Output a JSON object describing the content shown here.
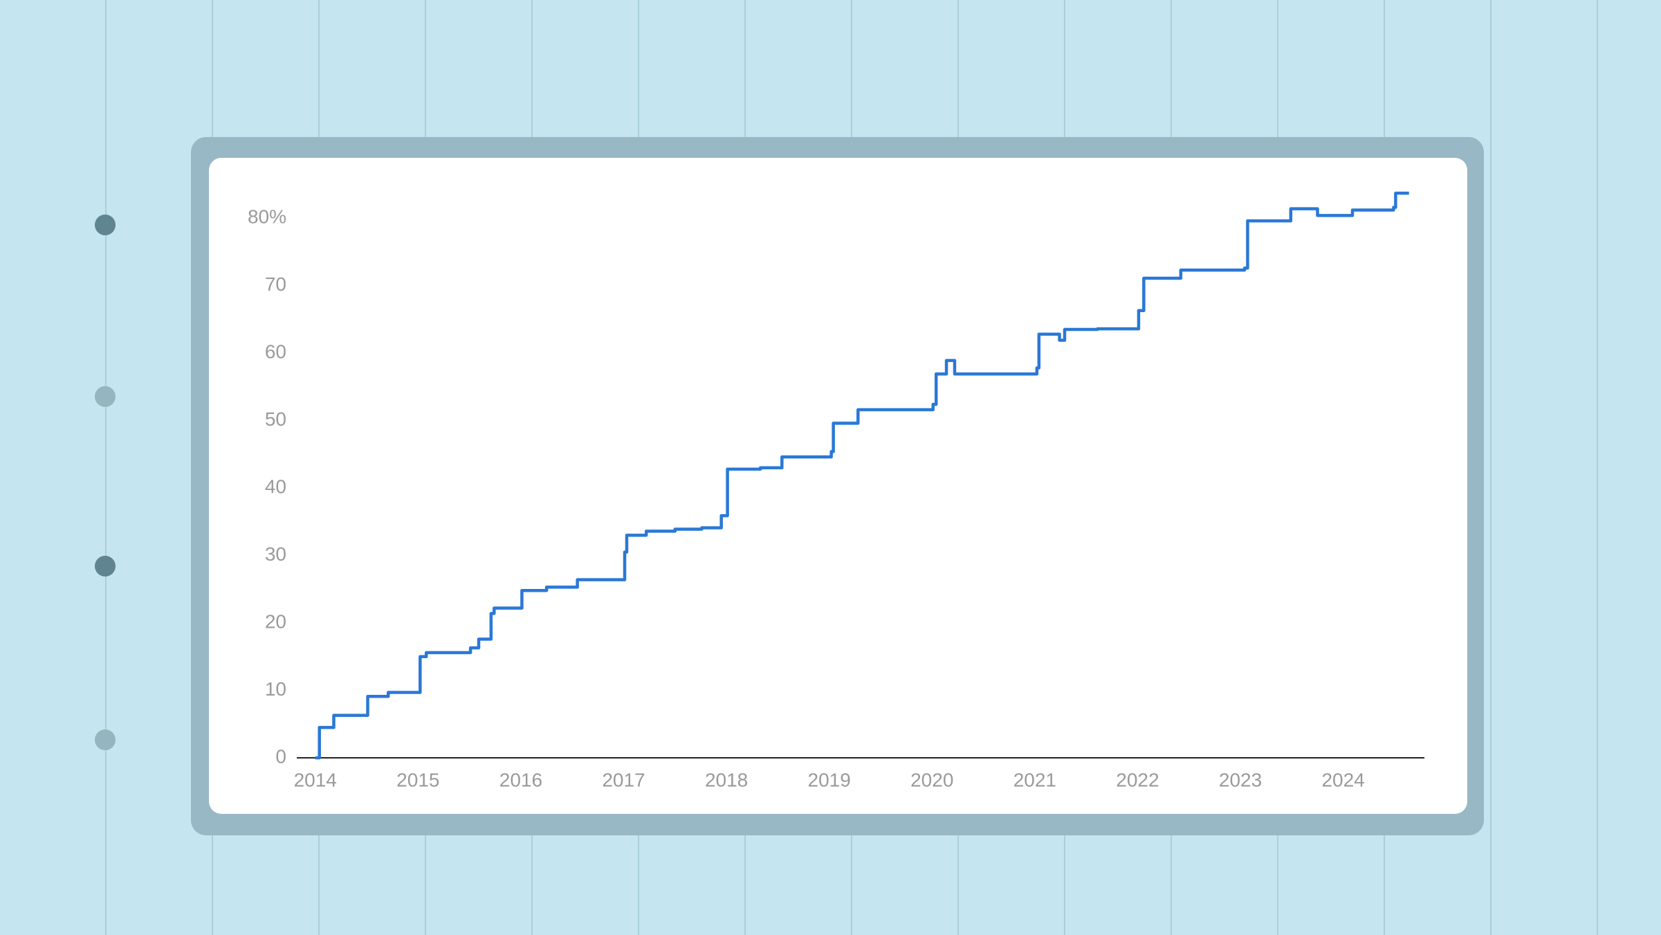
{
  "chart_data": {
    "type": "line",
    "step": true,
    "color": "#2a78d6",
    "x": [
      2014.0,
      2014.04,
      2014.18,
      2014.51,
      2014.71,
      2015.02,
      2015.08,
      2015.51,
      2015.59,
      2015.71,
      2015.74,
      2016.01,
      2016.25,
      2016.55,
      2017.01,
      2017.03,
      2017.22,
      2017.5,
      2017.76,
      2017.95,
      2018.01,
      2018.33,
      2018.54,
      2019.02,
      2019.04,
      2019.28,
      2020.01,
      2020.04,
      2020.14,
      2020.22,
      2021.02,
      2021.04,
      2021.24,
      2021.29,
      2021.61,
      2022.01,
      2022.06,
      2022.42,
      2023.04,
      2023.07,
      2023.49,
      2023.75,
      2024.09,
      2024.49,
      2024.51,
      2024.64
    ],
    "values": [
      0,
      4.5,
      6.3,
      9.1,
      9.7,
      15,
      15.6,
      16.3,
      17.6,
      21.4,
      22.2,
      24.8,
      25.3,
      26.4,
      30.5,
      33,
      33.6,
      33.9,
      34.1,
      35.9,
      42.8,
      43,
      44.6,
      45.4,
      49.6,
      51.6,
      52.4,
      56.9,
      58.9,
      56.9,
      57.8,
      62.8,
      61.9,
      63.5,
      63.6,
      66.3,
      71.1,
      72.3,
      72.6,
      79.6,
      81.4,
      80.4,
      81.2,
      81.6,
      83.7,
      83.7
    ],
    "xlim": [
      2013.82,
      2024.79
    ],
    "xticks": [
      2014,
      2015,
      2016,
      2017,
      2018,
      2019,
      2020,
      2021,
      2022,
      2023,
      2024
    ],
    "ylim": [
      0,
      87
    ],
    "yticks": [
      0,
      10,
      20,
      30,
      40,
      50,
      60,
      70,
      {
        "value": 80,
        "label": "80%"
      }
    ],
    "grid": false
  }
}
